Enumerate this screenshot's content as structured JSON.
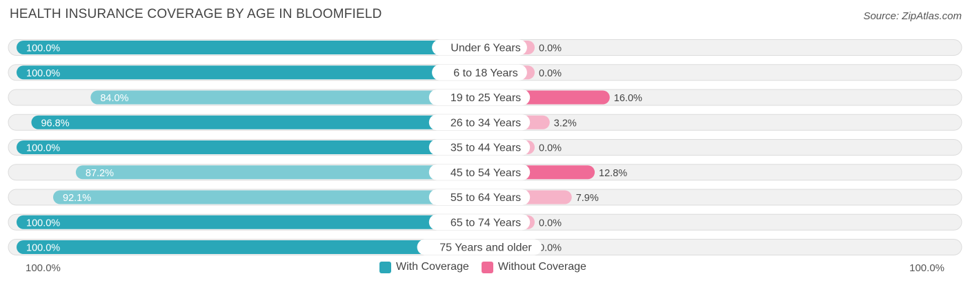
{
  "chart_data": {
    "type": "bar",
    "orientation": "horizontal-diverging",
    "title": "HEALTH INSURANCE COVERAGE BY AGE IN BLOOMFIELD",
    "source": "Source: ZipAtlas.com",
    "categories": [
      "Under 6 Years",
      "6 to 18 Years",
      "19 to 25 Years",
      "26 to 34 Years",
      "35 to 44 Years",
      "45 to 54 Years",
      "55 to 64 Years",
      "65 to 74 Years",
      "75 Years and older"
    ],
    "series": [
      {
        "name": "With Coverage",
        "values": [
          100.0,
          100.0,
          84.0,
          96.8,
          100.0,
          87.2,
          92.1,
          100.0,
          100.0
        ],
        "labels": [
          "100.0%",
          "100.0%",
          "84.0%",
          "96.8%",
          "100.0%",
          "87.2%",
          "92.1%",
          "100.0%",
          "100.0%"
        ],
        "color": "#2aa7b8",
        "light_color": "#7dcbd4"
      },
      {
        "name": "Without Coverage",
        "values": [
          0.0,
          0.0,
          16.0,
          3.2,
          0.0,
          12.8,
          7.9,
          0.0,
          0.0
        ],
        "labels": [
          "0.0%",
          "0.0%",
          "16.0%",
          "3.2%",
          "0.0%",
          "12.8%",
          "7.9%",
          "0.0%",
          "0.0%"
        ],
        "color": "#f06b97",
        "light_color": "#f6b3c8"
      }
    ],
    "axis_left_label": "100.0%",
    "axis_right_label": "100.0%",
    "xlim": [
      0,
      100
    ],
    "legend_position": "bottom-center"
  }
}
